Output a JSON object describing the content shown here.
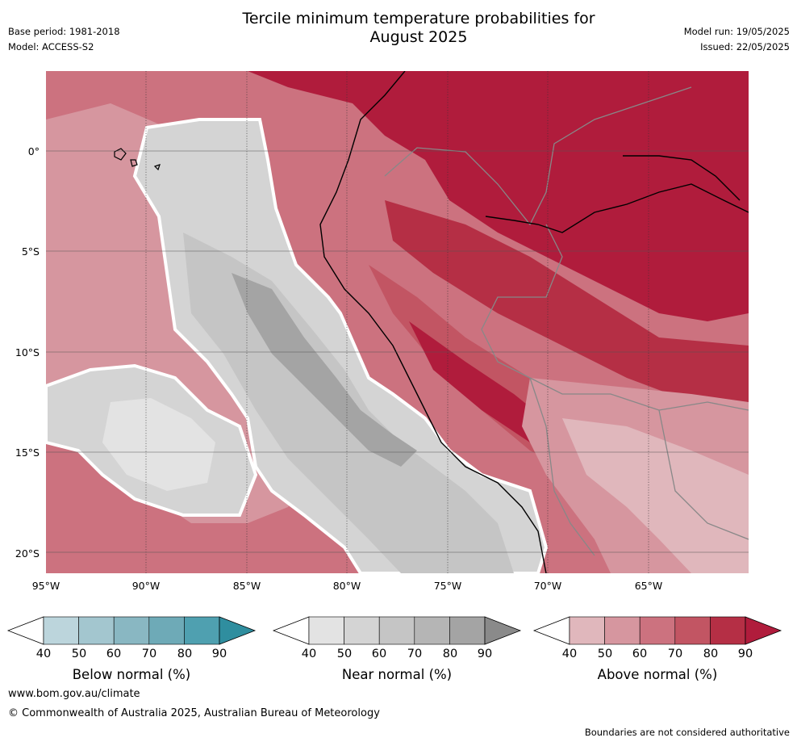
{
  "title_line1": "Tercile minimum temperature probabilities for",
  "title_line2": "August 2025",
  "base_period": "Base period: 1981-2018",
  "model": "Model: ACCESS-S2",
  "model_run": "Model run: 19/05/2025",
  "issued": "Issued: 22/05/2025",
  "latitude_labels": [
    "0°",
    "5°S",
    "10°S",
    "15°S",
    "20°S"
  ],
  "longitude_labels": [
    "95°W",
    "90°W",
    "85°W",
    "80°W",
    "75°W",
    "70°W",
    "65°W"
  ],
  "colorbars": [
    {
      "title": "Below normal (%)",
      "ticks": [
        "40",
        "50",
        "60",
        "70",
        "80",
        "90"
      ],
      "colors": [
        "#bcd5dc",
        "#a3c6cf",
        "#89b7c2",
        "#6eaab7",
        "#4fa0b0"
      ],
      "arrow_color": "#2f8e9f"
    },
    {
      "title": "Near normal (%)",
      "ticks": [
        "40",
        "50",
        "60",
        "70",
        "80",
        "90"
      ],
      "colors": [
        "#e3e3e3",
        "#d4d4d4",
        "#c5c5c5",
        "#b5b5b5",
        "#a4a4a4"
      ],
      "arrow_color": "#8a8a8a"
    },
    {
      "title": "Above normal (%)",
      "ticks": [
        "40",
        "50",
        "60",
        "70",
        "80",
        "90"
      ],
      "colors": [
        "#e0b7bc",
        "#d6969f",
        "#cc727f",
        "#c25563",
        "#b52f45"
      ],
      "arrow_color": "#b01c3c"
    }
  ],
  "footer_url": "www.bom.gov.au/climate",
  "footer_copyright": "© Commonwealth of Australia 2025, Australian Bureau of Meteorology",
  "footer_note": "Boundaries are not considered authoritative"
}
